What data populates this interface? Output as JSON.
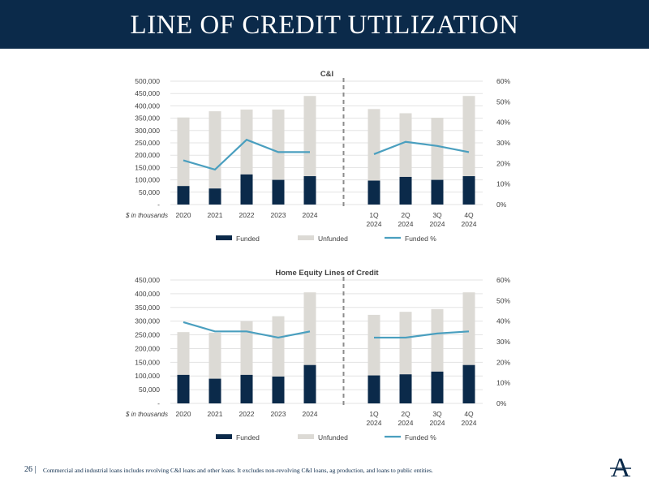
{
  "page": {
    "title": "LINE OF CREDIT UTILIZATION",
    "page_number": "26 |",
    "footnote": "Commercial and industrial loans includes revolving C&I loans and other loans. It excludes non-revolving C&I loans, ag production, and loans to public entities.",
    "logo_letter": "A"
  },
  "colors": {
    "banner": "#0b2a4a",
    "funded": "#0b2a4a",
    "unfunded": "#dcdad5",
    "funded_pct": "#4a9fbf",
    "divider": "#8c8c8c",
    "grid": "#e3e3e3",
    "text": "#404040"
  },
  "chart_data": [
    {
      "type": "bar",
      "title": "C&I",
      "stacked": true,
      "categories": [
        "2020",
        "2021",
        "2022",
        "2023",
        "2024",
        "1Q\n2024",
        "2Q\n2024",
        "3Q\n2024",
        "4Q\n2024"
      ],
      "category_note": "$ in thousands",
      "y_ticks": [
        "-",
        "50,000",
        "100,000",
        "150,000",
        "200,000",
        "250,000",
        "300,000",
        "350,000",
        "400,000",
        "450,000",
        "500,000"
      ],
      "y_range": [
        0,
        500000
      ],
      "y2_ticks": [
        "0%",
        "10%",
        "20%",
        "30%",
        "40%",
        "50%",
        "60%"
      ],
      "y2_range": [
        0,
        0.6
      ],
      "grid": true,
      "legend_position": "bottom",
      "divider_after_index": 4,
      "series": [
        {
          "name": "Funded",
          "type": "bar",
          "values": [
            75000,
            65000,
            122000,
            100000,
            115000,
            97000,
            112000,
            100000,
            115000
          ]
        },
        {
          "name": "Unfunded",
          "type": "bar",
          "values": [
            278000,
            313000,
            263000,
            285000,
            325000,
            290000,
            258000,
            252000,
            325000
          ]
        },
        {
          "name": "Funded %",
          "type": "line",
          "axis": "y2",
          "values": [
            0.215,
            0.17,
            0.315,
            0.255,
            0.255,
            0.245,
            0.305,
            0.285,
            0.255
          ]
        }
      ]
    },
    {
      "type": "bar",
      "title": "Home Equity Lines of Credit",
      "stacked": true,
      "categories": [
        "2020",
        "2021",
        "2022",
        "2023",
        "2024",
        "1Q\n2024",
        "2Q\n2024",
        "3Q\n2024",
        "4Q\n2024"
      ],
      "category_note": "$ in thousands",
      "y_ticks": [
        "-",
        "50,000",
        "100,000",
        "150,000",
        "200,000",
        "250,000",
        "300,000",
        "350,000",
        "400,000",
        "450,000"
      ],
      "y_range": [
        0,
        450000
      ],
      "y2_ticks": [
        "0%",
        "10%",
        "20%",
        "30%",
        "40%",
        "50%",
        "60%"
      ],
      "y2_range": [
        0,
        0.6
      ],
      "grid": true,
      "legend_position": "bottom",
      "divider_after_index": 4,
      "series": [
        {
          "name": "Funded",
          "type": "bar",
          "values": [
            104000,
            90000,
            104000,
            98000,
            140000,
            102000,
            106000,
            116000,
            140000
          ]
        },
        {
          "name": "Unfunded",
          "type": "bar",
          "values": [
            156000,
            168000,
            196000,
            220000,
            265000,
            221000,
            228000,
            228000,
            265000
          ]
        },
        {
          "name": "Funded %",
          "type": "line",
          "axis": "y2",
          "values": [
            0.395,
            0.35,
            0.35,
            0.32,
            0.35,
            0.32,
            0.32,
            0.34,
            0.35
          ]
        }
      ]
    }
  ]
}
